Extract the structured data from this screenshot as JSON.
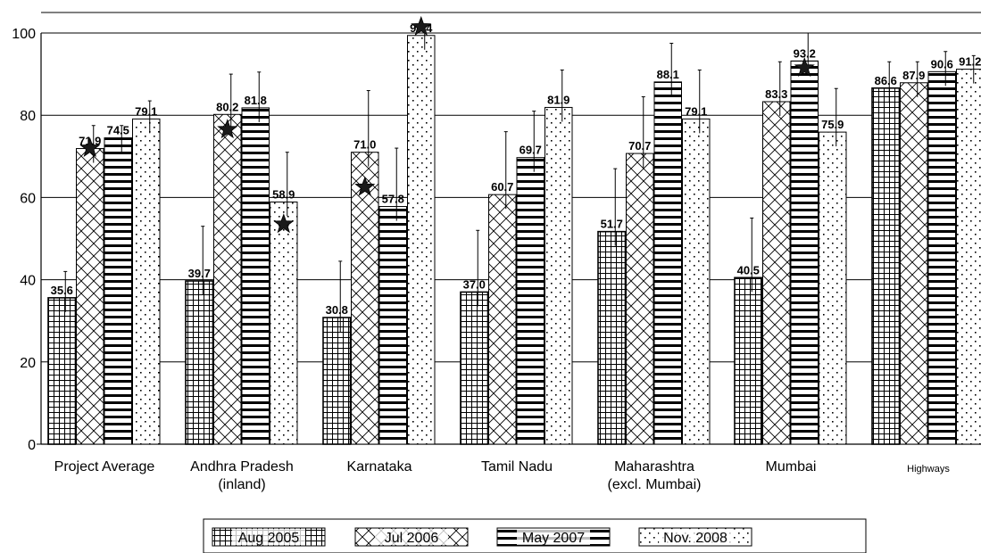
{
  "chart_data": {
    "type": "bar",
    "categories": [
      [
        "Project Average"
      ],
      [
        "Andhra Pradesh",
        "(inland)"
      ],
      [
        "Karnataka"
      ],
      [
        "Tamil Nadu"
      ],
      [
        "Maharashtra",
        "(excl. Mumbai)"
      ],
      [
        "Mumbai"
      ],
      [
        "Highways"
      ]
    ],
    "series": [
      {
        "name": "Aug  2005",
        "pattern": "grid",
        "values": [
          35.6,
          39.7,
          30.8,
          37.0,
          51.7,
          40.5,
          86.6
        ],
        "labels": [
          "35.6",
          "39.7",
          "30.8",
          "37.0",
          "51.7",
          "40.5",
          "86.6"
        ],
        "error_high": [
          42,
          53,
          44.5,
          52,
          67,
          55,
          93
        ]
      },
      {
        "name": "Jul  2006",
        "pattern": "diag",
        "values": [
          71.9,
          80.2,
          71.0,
          60.7,
          70.7,
          83.3,
          87.9
        ],
        "labels": [
          "71.9",
          "80.2",
          "71.0",
          "60.7",
          "70.7",
          "83.3",
          "87.9"
        ],
        "error_high": [
          77.5,
          90,
          86,
          76,
          84.5,
          93,
          93
        ]
      },
      {
        "name": "May  2007",
        "pattern": "hlines",
        "values": [
          74.5,
          81.8,
          57.8,
          69.7,
          88.1,
          93.2,
          90.6
        ],
        "labels": [
          "74.5",
          "81.8",
          "57.8",
          "69.7",
          "88.1",
          "93.2",
          "90.6"
        ],
        "error_high": [
          77.5,
          90.5,
          72,
          81,
          97.5,
          100,
          95.5
        ]
      },
      {
        "name": "Nov. 2008",
        "pattern": "dots",
        "values": [
          79.1,
          58.9,
          99.4,
          81.9,
          79.1,
          75.9,
          91.2
        ],
        "labels": [
          "79.1",
          "58.9",
          "99.4",
          "81.9",
          "79.1",
          "75.9",
          "91.2"
        ],
        "error_high": [
          83.5,
          71,
          100,
          91,
          91,
          86.5,
          94.5
        ]
      }
    ],
    "stars": [
      {
        "category": 0,
        "series": 1,
        "value": 72
      },
      {
        "category": 1,
        "series": 1,
        "value": 76.5
      },
      {
        "category": 1,
        "series": 3,
        "value": 53.5
      },
      {
        "category": 2,
        "series": 1,
        "value": 62.5
      },
      {
        "category": 2,
        "series": 3,
        "value": 101.5
      },
      {
        "category": 5,
        "series": 2,
        "value": 91.5
      }
    ],
    "yticks": [
      "0",
      "20",
      "40",
      "60",
      "80",
      "100"
    ],
    "ylim": [
      0,
      100
    ],
    "grid": "horizontal",
    "legend_position": "bottom-center"
  }
}
